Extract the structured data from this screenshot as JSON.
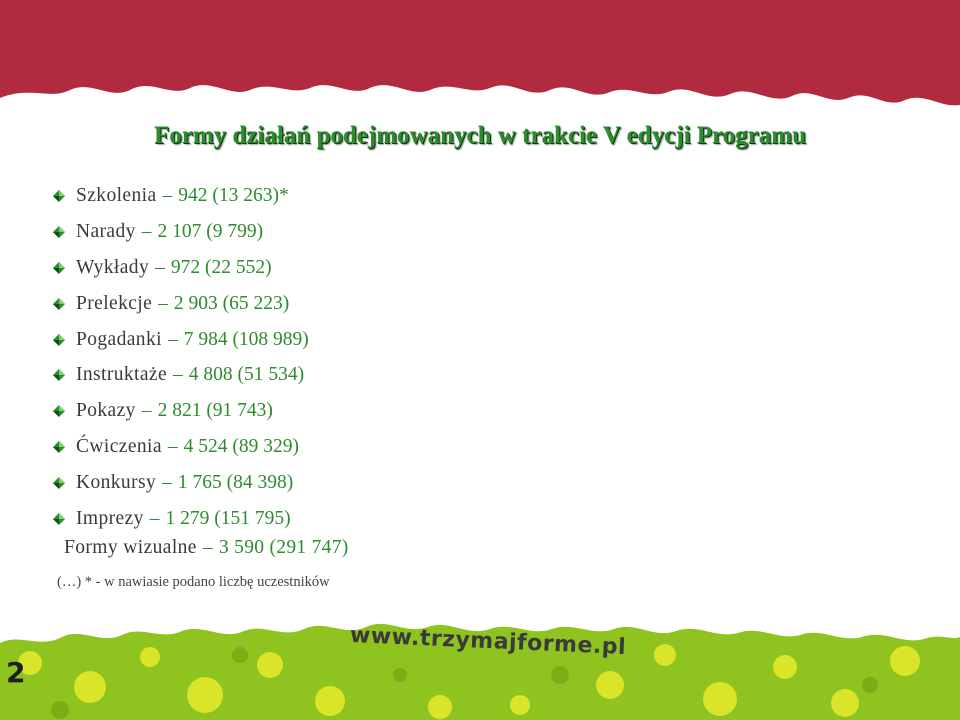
{
  "slide": {
    "title": "Formy działań podejmowanych w trakcie  V edycji Programu",
    "items": [
      {
        "label": "Szkolenia",
        "value": "942 (13 263)*"
      },
      {
        "label": "Narady",
        "value": "2 107 (9 799)"
      },
      {
        "label": "Wykłady",
        "value": "972 (22 552)"
      },
      {
        "label": "Prelekcje",
        "value": "2 903 (65 223)"
      },
      {
        "label": "Pogadanki",
        "value": "7 984 (108 989)"
      },
      {
        "label": "Instruktaże",
        "value": "4 808 (51 534)"
      },
      {
        "label": "Pokazy",
        "value": "2 821 (91 743)"
      },
      {
        "label": "Ćwiczenia",
        "value": "4 524 (89 329)"
      },
      {
        "label": "Konkursy",
        "value": "1 765 (84 398)"
      },
      {
        "label": "Imprezy",
        "value": "1 279 (151 795)"
      }
    ],
    "extra_item": {
      "label": "Formy wizualne",
      "value": "3 590 (291 747)"
    },
    "dash": "–",
    "footnote": "(…) * - w nawiasie podano liczbę uczestników",
    "url": "www.trzymajforme.pl",
    "page_number": "2"
  },
  "colors": {
    "banner_red": "#b22a3f",
    "title_green": "#2e8b2e",
    "value_green": "#2e8b2e",
    "bottom_green": "#8fc31f",
    "dot_yellow": "#e8ea2a",
    "text_gray": "#3a3a3a"
  },
  "icons": {
    "bullet": "green-bullet-icon"
  }
}
